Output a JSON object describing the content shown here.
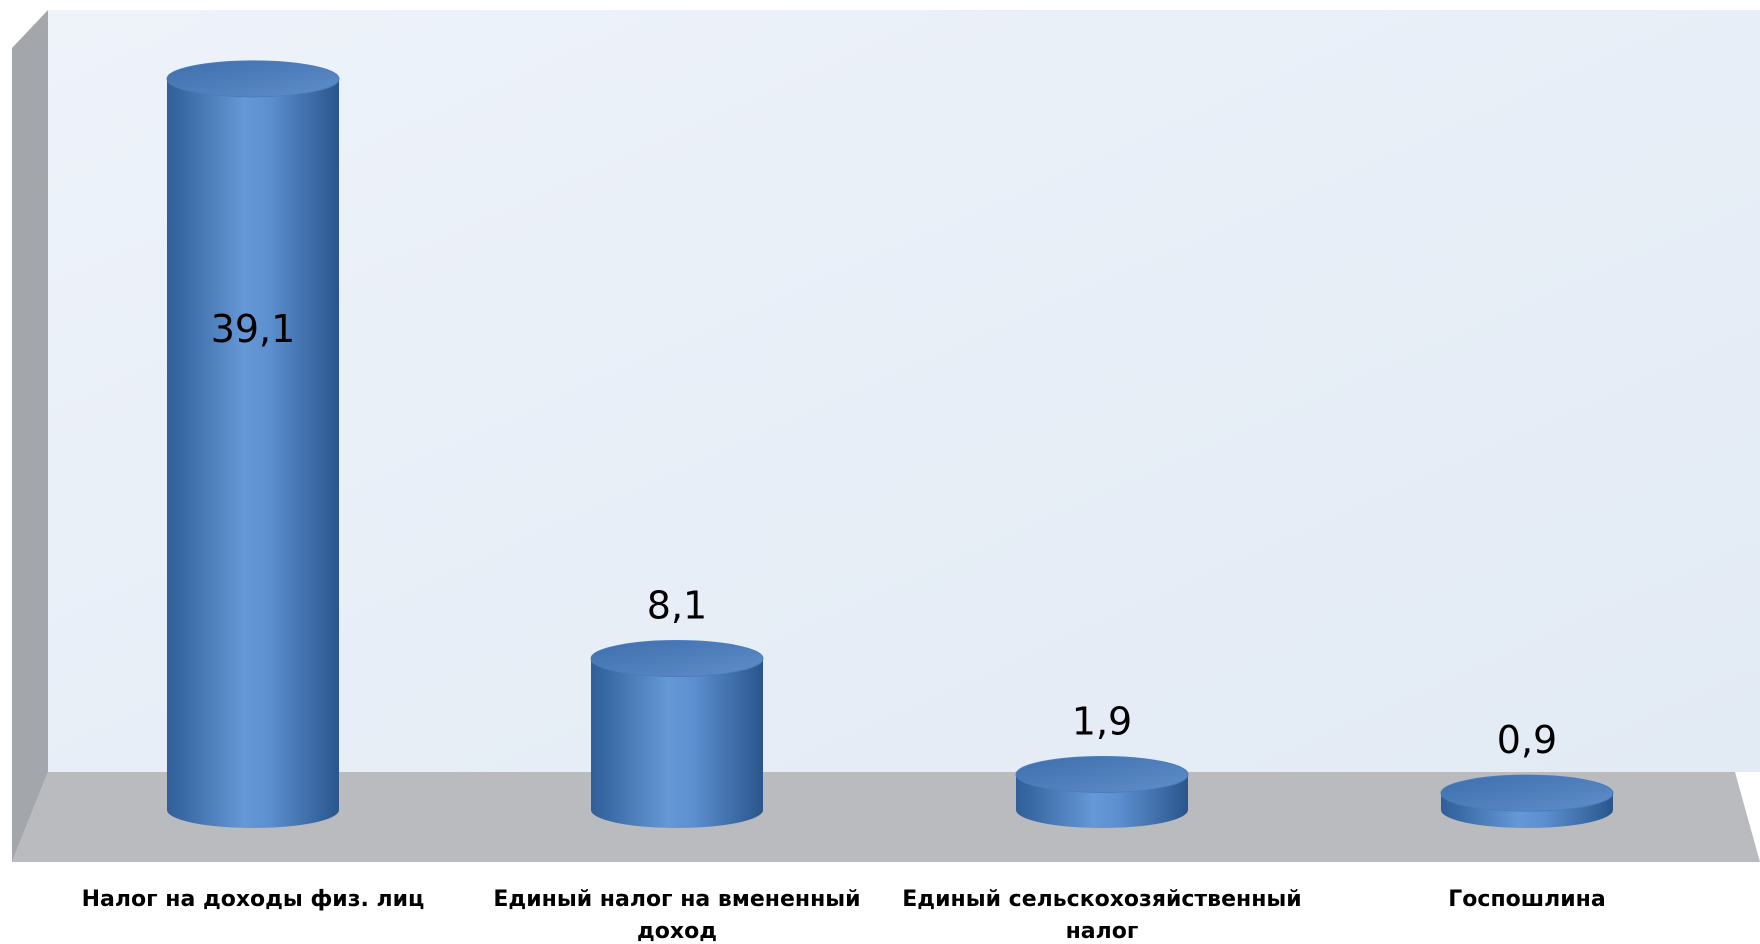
{
  "chart_data": {
    "type": "bar",
    "bar_shape": "cylinder-3d",
    "categories": [
      [
        "Налог на доходы физ. лиц"
      ],
      [
        "Единый налог на вмененный",
        "доход"
      ],
      [
        "Единый сельскохозяйственный",
        "налог"
      ],
      [
        "Госпошлина"
      ]
    ],
    "values": [
      39.1,
      8.1,
      1.9,
      0.9
    ],
    "data_labels": [
      "39,1",
      "8,1",
      "1,9",
      "0,9"
    ],
    "title": "",
    "xlabel": "",
    "ylabel": "",
    "ylim": [
      0,
      40
    ],
    "grid": false,
    "legend": "none",
    "colors": {
      "bar": "#4F81BD",
      "bar_dark": "#2E5C96",
      "bar_light": "#6FA0DA",
      "wall": "#E6EEF8",
      "floor": "#BDBDBD",
      "side_wall": "#A9A9A9"
    }
  }
}
